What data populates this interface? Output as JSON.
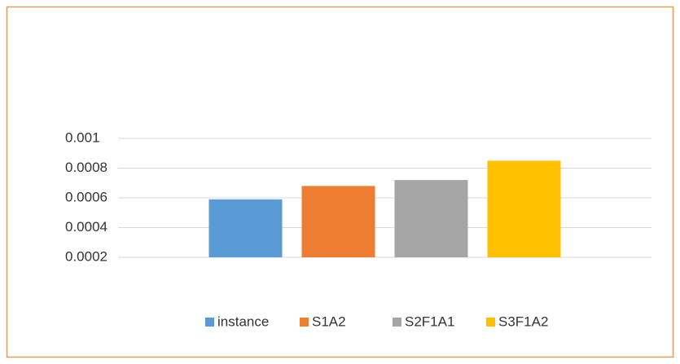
{
  "chart_data": {
    "type": "bar",
    "categories": [
      null
    ],
    "series": [
      {
        "name": "instance",
        "color": "#5b9bd5",
        "values": [
          0.00059
        ]
      },
      {
        "name": "S1A2",
        "color": "#ed7d31",
        "values": [
          0.00068
        ]
      },
      {
        "name": "S2F1A1",
        "color": "#a5a5a5",
        "values": [
          0.00072
        ]
      },
      {
        "name": "S3F1A2",
        "color": "#ffc000",
        "values": [
          0.00085
        ]
      }
    ],
    "ylim": [
      0.0002,
      0.001
    ],
    "yticks": [
      0.0002,
      0.0004,
      0.0006,
      0.0008,
      0.001
    ],
    "grid": true,
    "legend": "bottom"
  }
}
